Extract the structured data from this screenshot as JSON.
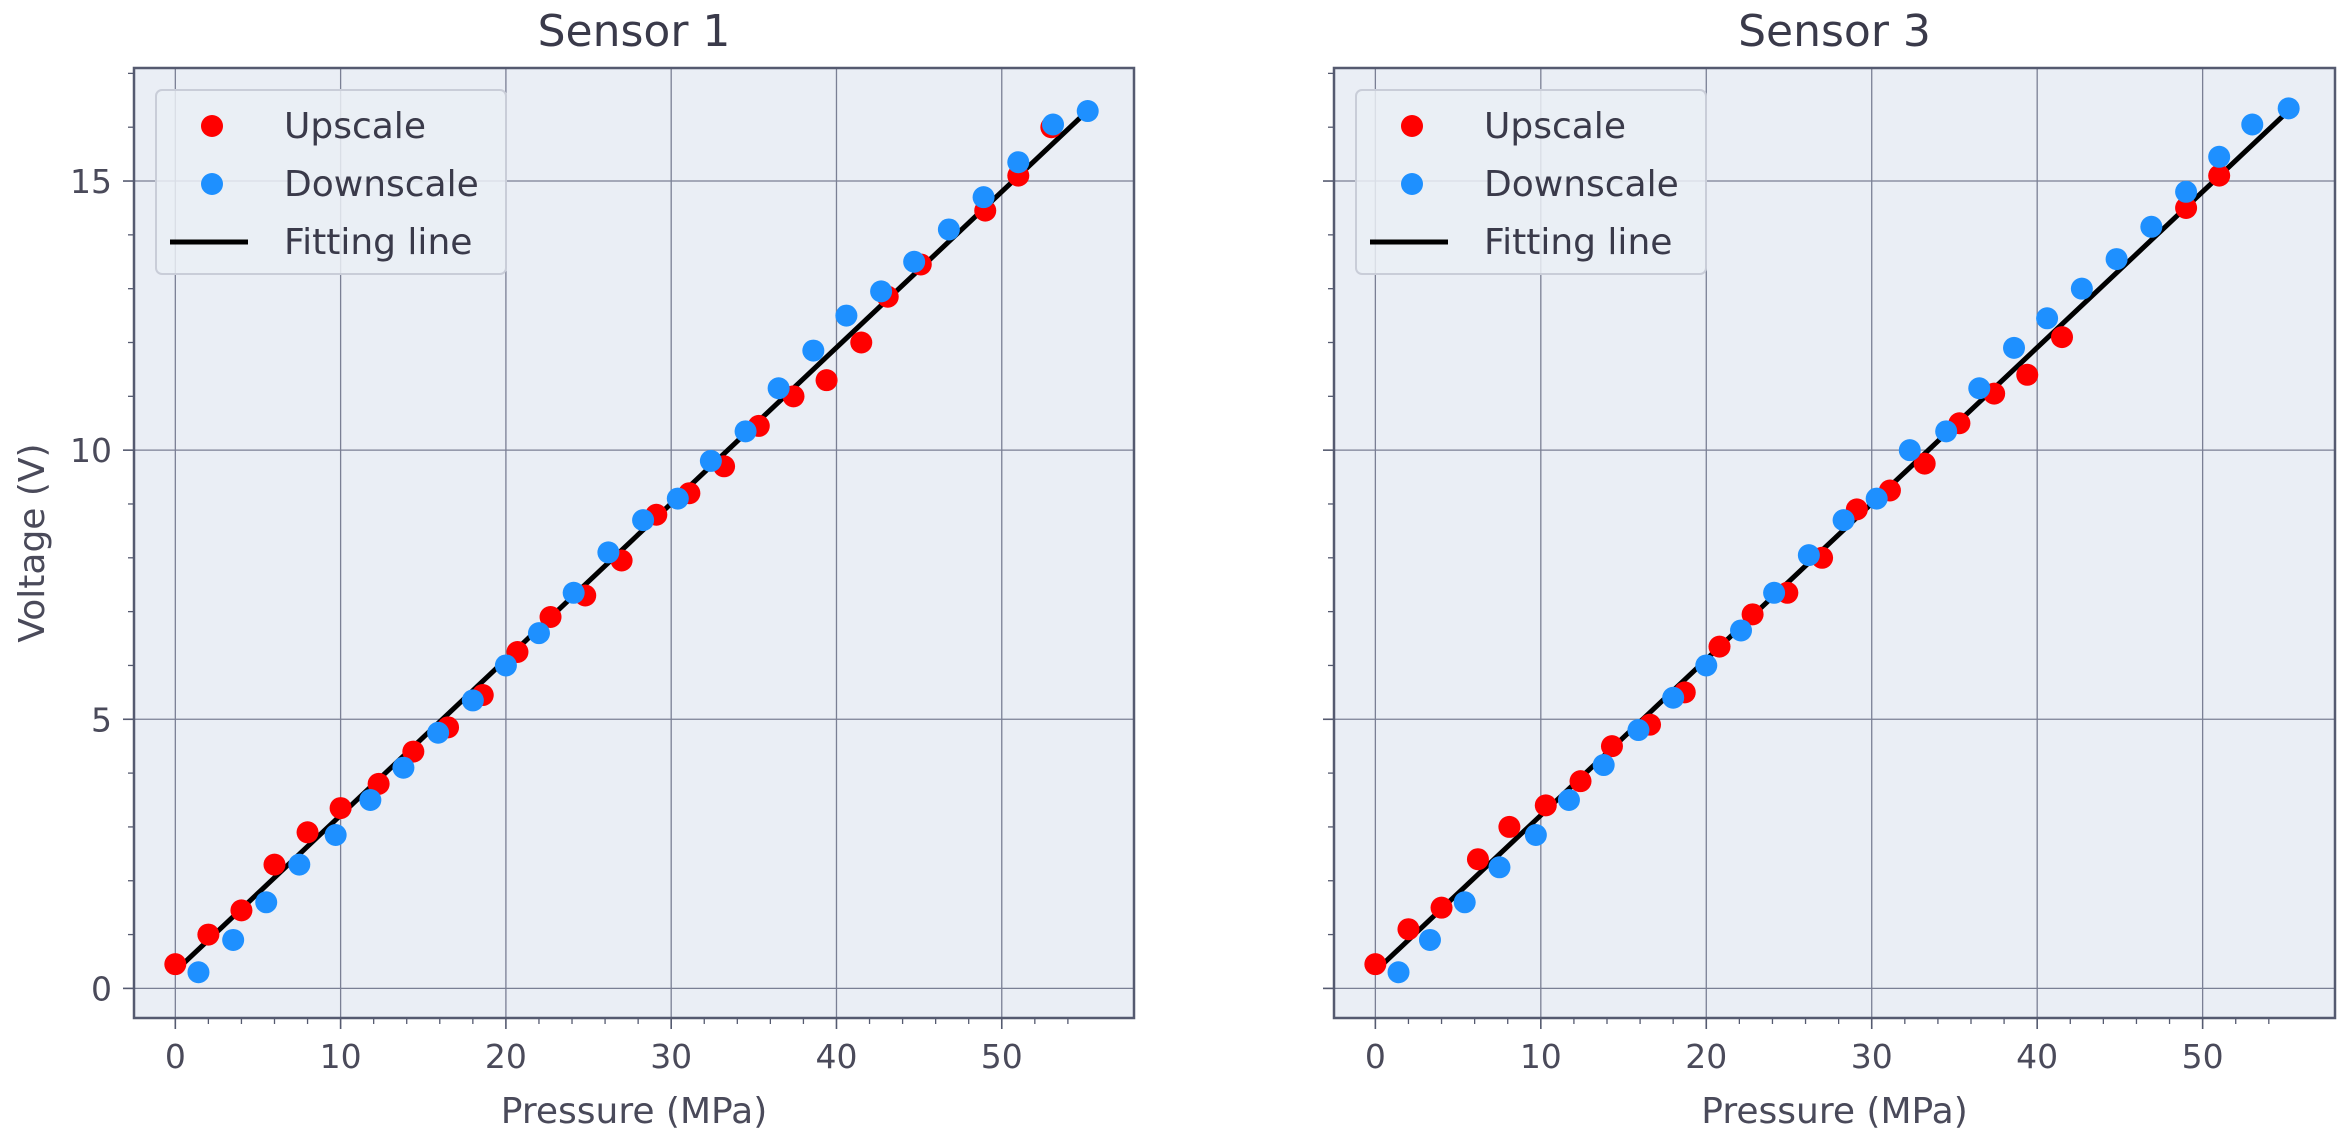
{
  "colors": {
    "background": "#eaeef5",
    "grid": "#7a7f94",
    "frame": "#555a70",
    "upscale": "#ff0000",
    "downscale": "#1e90ff",
    "fit": "#000000"
  },
  "chart_data": [
    {
      "type": "scatter",
      "title": "Sensor 1",
      "xlabel": "Pressure (MPa)",
      "ylabel": "Voltage (V)",
      "xlim": [
        -2.5,
        58
      ],
      "ylim": [
        -0.55,
        17.1
      ],
      "xticks": [
        0,
        10,
        20,
        30,
        40,
        50
      ],
      "yticks": [
        0,
        5,
        10,
        15
      ],
      "show_yticklabels": true,
      "grid": true,
      "legend": "top-left",
      "legend_labels": [
        "Upscale",
        "Downscale",
        "Fitting line"
      ],
      "series": [
        {
          "name": "Upscale",
          "color": "#ff0000",
          "x": [
            0,
            2,
            4,
            6,
            8,
            10,
            12.3,
            14.4,
            16.5,
            18.6,
            20.7,
            22.7,
            24.8,
            27,
            29.1,
            31.1,
            33.2,
            35.3,
            37.4,
            39.4,
            41.5,
            43.1,
            45.1,
            49,
            51,
            53
          ],
          "y": [
            0.45,
            1.0,
            1.45,
            2.3,
            2.9,
            3.35,
            3.8,
            4.4,
            4.85,
            5.45,
            6.25,
            6.9,
            7.3,
            7.95,
            8.8,
            9.2,
            9.7,
            10.45,
            11.0,
            11.3,
            12.0,
            12.85,
            13.45,
            14.45,
            15.1,
            16.0
          ]
        },
        {
          "name": "Downscale",
          "color": "#1e90ff",
          "x": [
            1.4,
            3.5,
            5.5,
            7.5,
            9.7,
            11.8,
            13.8,
            15.9,
            18,
            20,
            22,
            24.1,
            26.2,
            28.3,
            30.4,
            32.4,
            34.5,
            36.5,
            38.6,
            40.6,
            42.7,
            44.7,
            46.8,
            48.9,
            51,
            53.1,
            55.2
          ],
          "y": [
            0.3,
            0.9,
            1.6,
            2.3,
            2.85,
            3.5,
            4.1,
            4.75,
            5.35,
            6.0,
            6.6,
            7.35,
            8.1,
            8.7,
            9.1,
            9.8,
            10.35,
            11.15,
            11.85,
            12.5,
            12.95,
            13.5,
            14.1,
            14.7,
            15.35,
            16.05,
            16.3
          ]
        },
        {
          "name": "Fitting line",
          "color": "#000000",
          "type": "line",
          "x": [
            0,
            55
          ],
          "y": [
            0.32,
            16.25
          ]
        }
      ]
    },
    {
      "type": "scatter",
      "title": "Sensor 3",
      "xlabel": "Pressure (MPa)",
      "ylabel": "",
      "xlim": [
        -2.5,
        58
      ],
      "ylim": [
        -0.55,
        17.1
      ],
      "xticks": [
        0,
        10,
        20,
        30,
        40,
        50
      ],
      "yticks": [
        0,
        5,
        10,
        15
      ],
      "show_yticklabels": false,
      "grid": true,
      "legend": "top-left",
      "legend_labels": [
        "Upscale",
        "Downscale",
        "Fitting line"
      ],
      "series": [
        {
          "name": "Upscale",
          "color": "#ff0000",
          "x": [
            0,
            2,
            4,
            6.2,
            8.1,
            10.3,
            12.4,
            14.3,
            16.6,
            18.7,
            20.8,
            22.8,
            24.9,
            27,
            29.1,
            31.1,
            33.2,
            35.3,
            37.4,
            39.4,
            41.5,
            49,
            51
          ],
          "y": [
            0.45,
            1.1,
            1.5,
            2.4,
            3.0,
            3.4,
            3.85,
            4.5,
            4.9,
            5.5,
            6.35,
            6.95,
            7.35,
            8.0,
            8.9,
            9.25,
            9.75,
            10.5,
            11.05,
            11.4,
            12.1,
            14.5,
            15.1
          ]
        },
        {
          "name": "Downscale",
          "color": "#1e90ff",
          "x": [
            1.4,
            3.3,
            5.4,
            7.5,
            9.7,
            11.7,
            13.8,
            15.9,
            18,
            20,
            22.1,
            24.1,
            26.2,
            28.3,
            30.3,
            32.3,
            34.5,
            36.5,
            38.6,
            40.6,
            42.7,
            44.8,
            46.9,
            49,
            51,
            53,
            55.2
          ],
          "y": [
            0.3,
            0.9,
            1.6,
            2.25,
            2.85,
            3.5,
            4.15,
            4.8,
            5.4,
            6.0,
            6.65,
            7.35,
            8.05,
            8.7,
            9.1,
            10.0,
            10.35,
            11.15,
            11.9,
            12.45,
            13.0,
            13.55,
            14.15,
            14.8,
            15.45,
            16.05,
            16.35
          ]
        },
        {
          "name": "Fitting line",
          "color": "#000000",
          "type": "line",
          "x": [
            0,
            55
          ],
          "y": [
            0.32,
            16.25
          ]
        }
      ]
    }
  ]
}
